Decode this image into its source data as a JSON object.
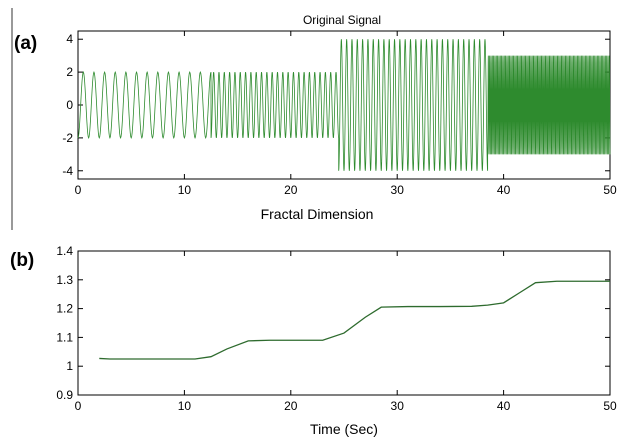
{
  "chart_data": [
    {
      "panel_label": "(a)",
      "type": "line",
      "title": "Original Signal",
      "xlabel": "Fractal Dimension",
      "ylabel": "",
      "xlim": [
        0,
        50
      ],
      "ylim": [
        -4.5,
        4.5
      ],
      "xticks": [
        0,
        10,
        20,
        30,
        40,
        50
      ],
      "yticks": [
        -4,
        -2,
        0,
        2,
        4
      ],
      "grid": false,
      "line_color": "#2e8b2e",
      "segments": [
        {
          "x_start": 0,
          "x_end": 12.5,
          "amplitude": 2,
          "frequency_hz": 1.0
        },
        {
          "x_start": 12.5,
          "x_end": 24.5,
          "amplitude": 2,
          "frequency_hz": 2.0
        },
        {
          "x_start": 24.5,
          "x_end": 38.5,
          "amplitude": 4,
          "frequency_hz": 2.0
        },
        {
          "x_start": 38.5,
          "x_end": 50,
          "amplitude": 3,
          "frequency_hz": 8.0
        }
      ]
    },
    {
      "panel_label": "(b)",
      "type": "line",
      "title": "",
      "xlabel": "Time (Sec)",
      "ylabel": "",
      "xlim": [
        0,
        50
      ],
      "ylim": [
        0.9,
        1.4
      ],
      "xticks": [
        0,
        10,
        20,
        30,
        40,
        50
      ],
      "yticks": [
        0.9,
        1,
        1.1,
        1.2,
        1.3,
        1.4
      ],
      "grid": false,
      "line_color": "#2e6b2e",
      "x": [
        2,
        3,
        5,
        8,
        11,
        12.5,
        14,
        16,
        18,
        20,
        23,
        25,
        27,
        28.5,
        31,
        34,
        37,
        38.5,
        40,
        41.5,
        43,
        45,
        50
      ],
      "y": [
        1.027,
        1.025,
        1.025,
        1.025,
        1.025,
        1.033,
        1.06,
        1.088,
        1.09,
        1.09,
        1.09,
        1.115,
        1.17,
        1.205,
        1.207,
        1.207,
        1.208,
        1.212,
        1.22,
        1.255,
        1.29,
        1.295,
        1.295
      ]
    }
  ]
}
